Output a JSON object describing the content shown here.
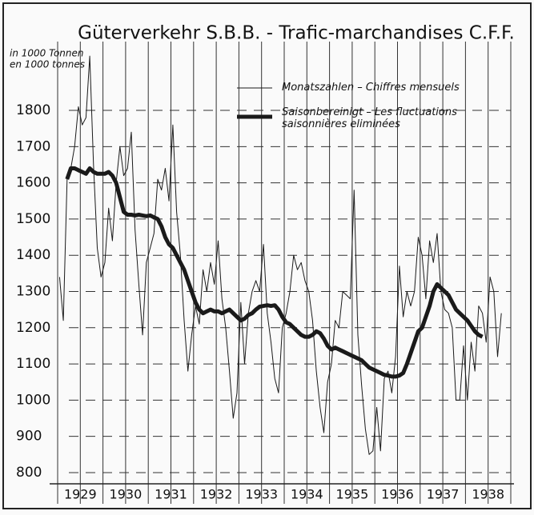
{
  "chart_data": {
    "type": "line",
    "title": "Güterverkehr S.B.B. - Trafic-marchandises C.F.F.",
    "y_label": [
      "in 1000 Tonnen",
      "en 1000 tonnes"
    ],
    "categories": [
      null,
      null,
      null,
      null,
      null,
      "1929",
      null,
      null,
      null,
      null,
      null,
      null,
      null,
      null,
      null,
      null,
      null,
      "1930",
      null,
      null,
      null,
      null,
      null,
      null,
      null,
      null,
      null,
      null,
      null,
      "1931",
      null,
      null,
      null,
      null,
      null,
      null,
      null,
      null,
      null,
      null,
      null,
      "1932",
      null,
      null,
      null,
      null,
      null,
      null,
      null,
      null,
      null,
      null,
      null,
      "1933",
      null,
      null,
      null,
      null,
      null,
      null,
      null,
      null,
      null,
      null,
      null,
      "1934",
      null,
      null,
      null,
      null,
      null,
      null,
      null,
      null,
      null,
      null,
      null,
      "1935",
      null,
      null,
      null,
      null,
      null,
      null,
      null,
      null,
      null,
      null,
      null,
      "1936",
      null,
      null,
      null,
      null,
      null,
      null,
      null,
      null,
      null,
      null,
      null,
      "1937",
      null,
      null,
      null,
      null,
      null,
      null,
      null,
      null,
      null,
      null,
      null,
      "1938",
      null,
      null,
      null,
      null,
      null,
      null
    ],
    "series": [
      {
        "name": "Monatszahlen – Chiffres mensuels",
        "color": "#1a1a1a",
        "width": 1,
        "values": [
          1340,
          1220,
          1610,
          1640,
          1700,
          1810,
          1760,
          1780,
          1950,
          1650,
          1420,
          1340,
          1380,
          1530,
          1440,
          1600,
          1700,
          1620,
          1640,
          1740,
          1470,
          1320,
          1180,
          1380,
          1420,
          1460,
          1610,
          1580,
          1640,
          1550,
          1760,
          1520,
          1400,
          1220,
          1080,
          1180,
          1260,
          1210,
          1360,
          1300,
          1380,
          1320,
          1440,
          1280,
          1200,
          1080,
          950,
          1020,
          1270,
          1100,
          1240,
          1300,
          1330,
          1300,
          1430,
          1240,
          1160,
          1060,
          1020,
          1200,
          1240,
          1300,
          1400,
          1360,
          1380,
          1330,
          1300,
          1220,
          1080,
          980,
          910,
          1050,
          1100,
          1220,
          1200,
          1300,
          1290,
          1280,
          1580,
          1180,
          1040,
          920,
          850,
          860,
          980,
          860,
          1060,
          1080,
          1020,
          1120,
          1370,
          1230,
          1300,
          1260,
          1300,
          1450,
          1400,
          1280,
          1440,
          1380,
          1460,
          1300,
          1250,
          1240,
          1200,
          1000,
          1000,
          1150,
          1000,
          1160,
          1080,
          1260,
          1240,
          1160,
          1340,
          1300,
          1120,
          1240,
          null,
          null
        ]
      },
      {
        "name": "Saisonbereinigt – Les fluctuations saisonnières eliminées",
        "color": "#1a1a1a",
        "width": 5,
        "values": [
          null,
          null,
          1610,
          1640,
          1640,
          1635,
          1630,
          1625,
          1640,
          1630,
          1625,
          1625,
          1625,
          1630,
          1620,
          1600,
          1560,
          1520,
          1512,
          1512,
          1510,
          1512,
          1510,
          1508,
          1510,
          1505,
          1500,
          1480,
          1450,
          1430,
          1420,
          1400,
          1380,
          1360,
          1330,
          1300,
          1270,
          1250,
          1240,
          1245,
          1250,
          1245,
          1245,
          1240,
          1245,
          1250,
          1240,
          1230,
          1220,
          1225,
          1235,
          1240,
          1250,
          1258,
          1260,
          1262,
          1260,
          1262,
          1250,
          1230,
          1215,
          1210,
          1200,
          1190,
          1180,
          1175,
          1175,
          1180,
          1190,
          1185,
          1170,
          1150,
          1140,
          1145,
          1140,
          1135,
          1130,
          1125,
          1120,
          1115,
          1110,
          1100,
          1090,
          1085,
          1080,
          1075,
          1070,
          1068,
          1065,
          1065,
          1068,
          1075,
          1100,
          1130,
          1160,
          1190,
          1200,
          1230,
          1260,
          1300,
          1320,
          1310,
          1300,
          1290,
          1270,
          1250,
          1240,
          1230,
          1220,
          1205,
          1190,
          1180,
          1175,
          null,
          null,
          null,
          null,
          null,
          null,
          null
        ]
      }
    ],
    "ylim": [
      780,
      1990
    ],
    "yticks": [
      800,
      900,
      1000,
      1100,
      1200,
      1300,
      1400,
      1500,
      1600,
      1700,
      1800
    ],
    "grid": true
  }
}
